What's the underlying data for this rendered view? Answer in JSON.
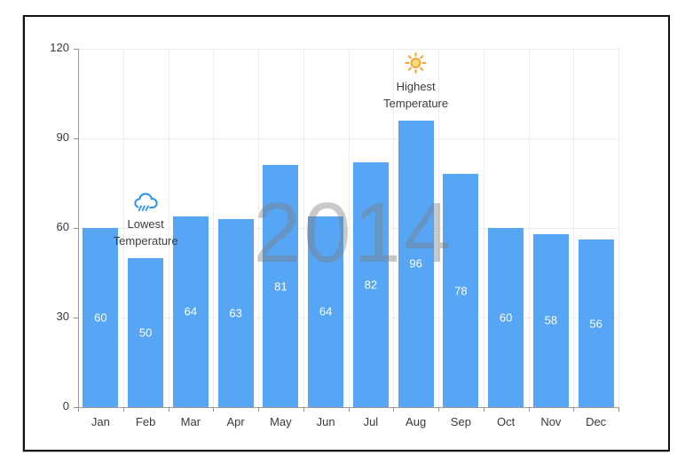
{
  "chart_data": {
    "type": "bar",
    "watermark": "2014",
    "categories": [
      "Jan",
      "Feb",
      "Mar",
      "Apr",
      "May",
      "Jun",
      "Jul",
      "Aug",
      "Sep",
      "Oct",
      "Nov",
      "Dec"
    ],
    "series": [
      {
        "name": "Temperature",
        "values": [
          60,
          50,
          64,
          63,
          81,
          64,
          82,
          96,
          78,
          60,
          58,
          56
        ],
        "color": "#57a6f5"
      }
    ],
    "ylim": [
      0,
      120
    ],
    "yticks": [
      0,
      30,
      60,
      90,
      120
    ],
    "xlabel": "",
    "ylabel": "",
    "grid": "on",
    "legend": "none",
    "data_labels": {
      "visible": true,
      "position": "middle"
    },
    "annotations": [
      {
        "id": "lowest",
        "icon": "rain-cloud-icon",
        "category": "Feb",
        "text_lines": [
          "Lowest",
          "Temperature"
        ]
      },
      {
        "id": "highest",
        "icon": "sun-icon",
        "category": "Aug",
        "text_lines": [
          "Highest",
          "Temperature"
        ]
      }
    ]
  },
  "colors": {
    "frame_border": "#111111",
    "axis_line": "#9b9b9b",
    "tick": "#8f8f8f",
    "grid_line": "#ededed",
    "axis_label": "#3a3a3a",
    "annotation_text": "#3c3c3c",
    "bar_label": "#ffffff",
    "watermark": "#7f7f7f",
    "sun_stroke": "#f3a73b",
    "sun_fill": "#fcdc7a",
    "cloud_stroke": "#2e96ec"
  }
}
